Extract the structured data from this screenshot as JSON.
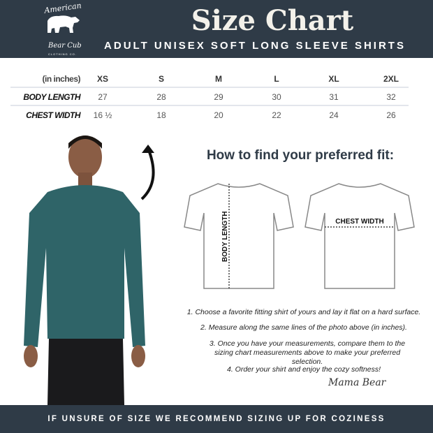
{
  "header": {
    "logo_text": [
      "American",
      "Bear Cub",
      "CLOTHING CO."
    ],
    "title": "Size Chart",
    "subtitle": "ADULT UNISEX SOFT LONG SLEEVE SHIRTS"
  },
  "table": {
    "unit_label": "(in inches)",
    "sizes": [
      "XS",
      "S",
      "M",
      "L",
      "XL",
      "2XL"
    ],
    "rows": [
      {
        "label": "BODY LENGTH",
        "values": [
          "27",
          "28",
          "29",
          "30",
          "31",
          "32"
        ]
      },
      {
        "label": "CHEST WIDTH",
        "values": [
          "16 ½",
          "18",
          "20",
          "22",
          "24",
          "26"
        ]
      }
    ]
  },
  "fit": {
    "heading": "How to find your preferred fit:",
    "body_length_label": "BODY LENGTH",
    "chest_width_label": "CHEST WIDTH",
    "steps": [
      "1. Choose a favorite fitting shirt of yours and lay it flat on a hard surface.",
      "2. Measure along the same lines of the photo above (in inches).",
      "3. Once you have your measurements, compare them to the sizing chart measurements above to make your preferred selection.",
      "4. Order your shirt and enjoy the cozy softness!"
    ],
    "signature": "Mama Bear"
  },
  "footer": {
    "text": "IF UNSURE OF SIZE WE RECOMMEND SIZING UP FOR COZINESS"
  },
  "colors": {
    "brand": "#2f3b47",
    "shirt": "#2f6468"
  }
}
